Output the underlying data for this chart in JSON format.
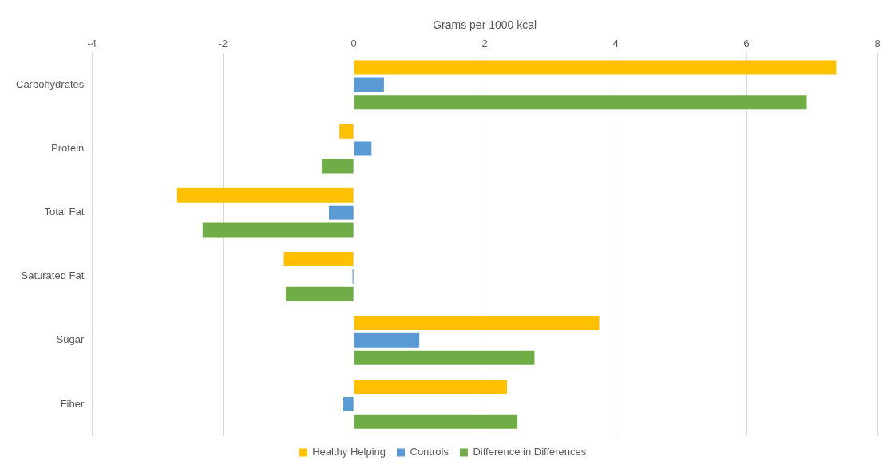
{
  "chart_data": {
    "type": "bar",
    "orientation": "horizontal",
    "xlabel": "Grams per 1000 kcal",
    "categories": [
      "Carbohydrates",
      "Protein",
      "Total Fat",
      "Saturated Fat",
      "Sugar",
      "Fiber"
    ],
    "series": [
      {
        "name": "Healthy Helping",
        "color": "#ffc000",
        "values": [
          7.37,
          -0.22,
          -2.7,
          -1.07,
          3.75,
          2.34
        ]
      },
      {
        "name": "Controls",
        "color": "#5b9bd5",
        "values": [
          0.46,
          0.27,
          -0.38,
          -0.02,
          1.0,
          -0.16
        ]
      },
      {
        "name": "Difference in Differences",
        "color": "#70ad47",
        "values": [
          6.92,
          -0.49,
          -2.31,
          -1.04,
          2.76,
          2.5
        ]
      }
    ],
    "xlim": [
      -4,
      8
    ],
    "xticks": [
      -4,
      -2,
      0,
      2,
      4,
      6,
      8
    ],
    "grid": "x",
    "legend": "bottom"
  }
}
